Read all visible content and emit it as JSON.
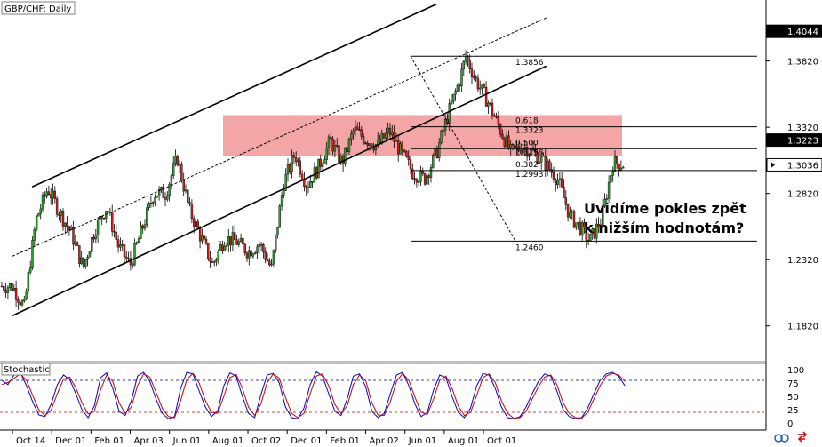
{
  "chart_data": {
    "type": "candlestick",
    "title": "GBP/CHF: Daily",
    "annotation": "Uvidíme pokles zpět k nižším hodnotám?",
    "price_axis": {
      "range": [
        1.155,
        1.428
      ],
      "ticks": [
        "1.4044",
        "1.3820",
        "1.3320",
        "1.2820",
        "1.2320",
        "1.1820"
      ],
      "tick_values": [
        1.4044,
        1.382,
        1.332,
        1.282,
        1.232,
        1.182
      ],
      "current_price_labels": [
        {
          "label": "1.4044",
          "value": 1.4044,
          "style": "dark"
        },
        {
          "label": "1.3223",
          "value": 1.3223,
          "style": "dark"
        },
        {
          "label": "1.3036",
          "value": 1.3036,
          "style": "light"
        }
      ]
    },
    "time_axis": {
      "labels": [
        "Oct 14",
        "Dec 01",
        "Feb 01",
        "Apr 03",
        "Jun 01",
        "Aug 01",
        "Oct 02",
        "Dec 01",
        "Feb 01",
        "Apr 02",
        "Jun 01",
        "Aug 01",
        "Oct 01"
      ],
      "bar_index": [
        0,
        1,
        2,
        3,
        4,
        5,
        6,
        7,
        8,
        9,
        10,
        11,
        12
      ]
    },
    "resistance_zone": {
      "low": 1.3103,
      "high": 1.3412,
      "color": "#f08080"
    },
    "channel_lines": [
      {
        "name": "upper",
        "from": [
          0.5,
          1.287
        ],
        "to": [
          10.8,
          1.4248
        ],
        "style": "solid"
      },
      {
        "name": "middle",
        "from": [
          0.0,
          1.2346
        ],
        "to": [
          13.6,
          1.4145
        ],
        "style": "dashed"
      },
      {
        "name": "lower",
        "from": [
          0.0,
          1.1897
        ],
        "to": [
          13.6,
          1.3781
        ],
        "style": "solid"
      }
    ],
    "fibonacci": {
      "swing_high": 1.3856,
      "swing_low": 1.246,
      "levels": [
        {
          "ratio": "",
          "price": "1.3856",
          "value": 1.3856
        },
        {
          "ratio": "0.618",
          "price": "1.3323",
          "value": 1.3323
        },
        {
          "ratio": "0.500",
          "price": "1.3158",
          "value": 1.3158
        },
        {
          "ratio": "0.382",
          "price": "1.2993",
          "value": 1.2993
        },
        {
          "ratio": "",
          "price": "1.2460",
          "value": 1.246
        }
      ]
    },
    "price_path": [
      [
        0.0,
        1.212
      ],
      [
        0.3,
        1.196
      ],
      [
        0.6,
        1.262
      ],
      [
        0.9,
        1.286
      ],
      [
        1.2,
        1.268
      ],
      [
        1.5,
        1.252
      ],
      [
        1.8,
        1.226
      ],
      [
        2.1,
        1.255
      ],
      [
        2.4,
        1.272
      ],
      [
        2.7,
        1.242
      ],
      [
        3.0,
        1.228
      ],
      [
        3.3,
        1.255
      ],
      [
        3.6,
        1.282
      ],
      [
        3.9,
        1.282
      ],
      [
        4.2,
        1.309
      ],
      [
        4.5,
        1.27
      ],
      [
        4.8,
        1.249
      ],
      [
        5.1,
        1.228
      ],
      [
        5.4,
        1.248
      ],
      [
        5.7,
        1.246
      ],
      [
        6.0,
        1.238
      ],
      [
        6.3,
        1.244
      ],
      [
        6.6,
        1.225
      ],
      [
        6.9,
        1.289
      ],
      [
        7.2,
        1.312
      ],
      [
        7.5,
        1.288
      ],
      [
        7.8,
        1.302
      ],
      [
        8.1,
        1.322
      ],
      [
        8.4,
        1.305
      ],
      [
        8.7,
        1.33
      ],
      [
        9.0,
        1.323
      ],
      [
        9.3,
        1.318
      ],
      [
        9.6,
        1.329
      ],
      [
        9.9,
        1.313
      ],
      [
        10.2,
        1.298
      ],
      [
        10.5,
        1.293
      ],
      [
        10.8,
        1.312
      ],
      [
        11.1,
        1.342
      ],
      [
        11.4,
        1.368
      ],
      [
        11.55,
        1.3856
      ],
      [
        11.8,
        1.368
      ],
      [
        12.1,
        1.352
      ],
      [
        12.4,
        1.332
      ],
      [
        12.7,
        1.313
      ],
      [
        13.0,
        1.318
      ],
      [
        13.3,
        1.312
      ],
      [
        13.6,
        1.304
      ],
      [
        13.9,
        1.292
      ],
      [
        14.2,
        1.265
      ],
      [
        14.5,
        1.255
      ],
      [
        14.7,
        1.246
      ],
      [
        15.0,
        1.262
      ],
      [
        15.3,
        1.305
      ],
      [
        15.6,
        1.304
      ]
    ],
    "stochastic": {
      "title": "Stochastic",
      "range": [
        0,
        100
      ],
      "ticks": [
        "100",
        "75",
        "50",
        "25",
        "0"
      ],
      "tick_values": [
        100,
        75,
        50,
        25,
        0
      ],
      "levels": [
        80,
        20
      ],
      "series": [
        {
          "color": "#0000cc",
          "values": [
            80,
            72,
            90,
            95,
            70,
            40,
            15,
            12,
            35,
            72,
            90,
            82,
            55,
            25,
            10,
            32,
            85,
            94,
            65,
            22,
            14,
            42,
            88,
            95,
            78,
            45,
            18,
            8,
            12,
            65,
            95,
            92,
            60,
            30,
            12,
            22,
            70,
            94,
            88,
            50,
            18,
            10,
            52,
            90,
            93,
            75,
            30,
            10,
            8,
            28,
            72,
            96,
            88,
            55,
            22,
            14,
            45,
            88,
            92,
            68,
            22,
            10,
            18,
            55,
            90,
            95,
            70,
            35,
            12,
            20,
            62,
            90,
            85,
            50,
            20,
            10,
            28,
            70,
            93,
            90,
            65,
            30,
            10,
            8,
            12,
            30,
            55,
            78,
            92,
            88,
            60,
            25,
            12,
            8,
            10,
            28,
            55,
            80,
            92,
            95,
            88,
            70
          ]
        },
        {
          "color": "#cc0000",
          "values": [
            72,
            76,
            84,
            92,
            80,
            52,
            25,
            14,
            24,
            55,
            82,
            86,
            66,
            38,
            17,
            22,
            62,
            90,
            78,
            38,
            18,
            30,
            70,
            92,
            86,
            58,
            28,
            12,
            10,
            42,
            82,
            93,
            75,
            42,
            20,
            18,
            50,
            85,
            91,
            66,
            30,
            14,
            35,
            75,
            92,
            84,
            48,
            18,
            10,
            18,
            55,
            88,
            92,
            70,
            35,
            18,
            32,
            72,
            90,
            80,
            38,
            15,
            14,
            40,
            78,
            93,
            80,
            48,
            20,
            16,
            45,
            80,
            88,
            65,
            32,
            14,
            20,
            52,
            85,
            92,
            76,
            42,
            18,
            9,
            10,
            22,
            45,
            68,
            86,
            90,
            72,
            38,
            18,
            10,
            9,
            20,
            45,
            70,
            88,
            93,
            90,
            78
          ]
        }
      ]
    }
  }
}
